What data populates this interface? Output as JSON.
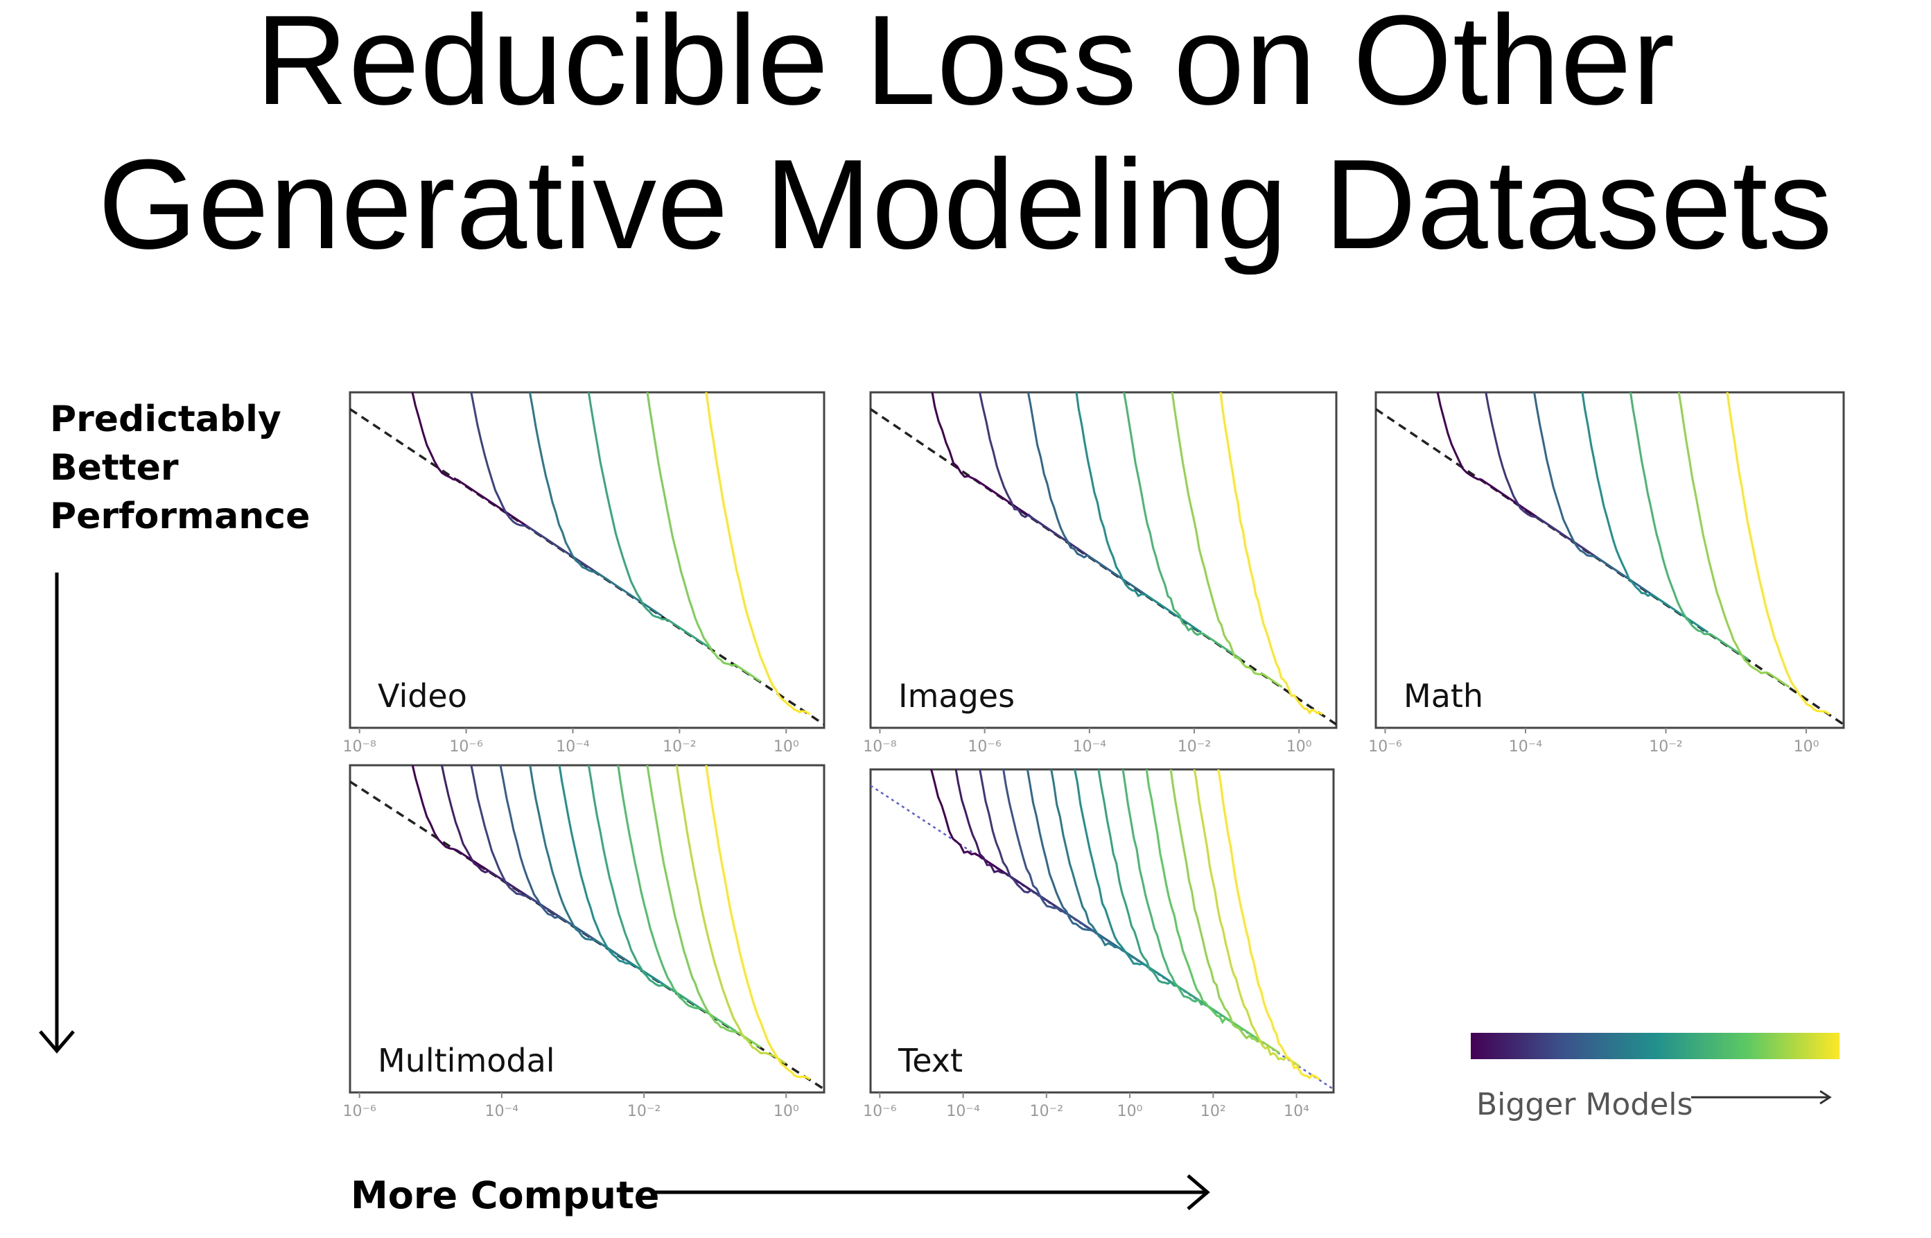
{
  "title_lines": [
    "Reducible Loss on Other",
    "Generative Modeling Datasets"
  ],
  "y_direction_label": [
    "Predictably",
    "Better",
    "Performance"
  ],
  "x_direction_label": "More Compute",
  "colorbar_label": "Bigger Models",
  "colorbar_colors": [
    "#440154",
    "#3b528b",
    "#21908d",
    "#5dc963",
    "#fde725"
  ],
  "chart_data": [
    {
      "type": "line",
      "panel_label": "Video",
      "xscale": "log",
      "xlim": [
        1e-08,
        10
      ],
      "x_tick_labels": [
        "10⁻⁸",
        "10⁻⁶",
        "10⁻⁴",
        "10⁻²",
        "10⁰"
      ],
      "frontier_style": "dashed-black",
      "series_count": 6
    },
    {
      "type": "line",
      "panel_label": "Images",
      "xscale": "log",
      "xlim": [
        1e-08,
        1
      ],
      "x_tick_labels": [
        "10⁻⁸",
        "10⁻⁶",
        "10⁻⁴",
        "10⁻²",
        "10⁰"
      ],
      "frontier_style": "dashed-black",
      "series_count": 7
    },
    {
      "type": "line",
      "panel_label": "Math",
      "xscale": "log",
      "xlim": [
        1e-07,
        10
      ],
      "x_tick_labels": [
        "10⁻⁶",
        "10⁻⁴",
        "10⁻²",
        "10⁰"
      ],
      "frontier_style": "dashed-black",
      "series_count": 7
    },
    {
      "type": "line",
      "panel_label": "Multimodal",
      "xscale": "log",
      "xlim": [
        1e-06,
        10
      ],
      "x_tick_labels": [
        "10⁻⁶",
        "10⁻⁴",
        "10⁻²",
        "10⁰"
      ],
      "frontier_style": "dashed-black",
      "series_count": 11
    },
    {
      "type": "line",
      "panel_label": "Text",
      "xscale": "log",
      "xlim": [
        1e-06,
        10000.0
      ],
      "x_tick_labels": [
        "10⁻⁶",
        "10⁻⁴",
        "10⁻²",
        "10⁰",
        "10²",
        "10⁴"
      ],
      "frontier_style": "dotted-blue",
      "series_count": 13
    }
  ]
}
